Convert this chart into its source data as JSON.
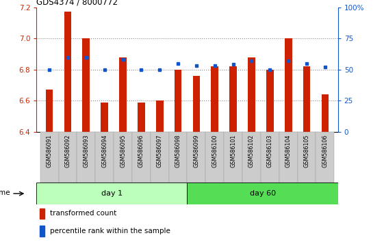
{
  "title": "GDS4374 / 8000772",
  "samples": [
    "GSM586091",
    "GSM586092",
    "GSM586093",
    "GSM586094",
    "GSM586095",
    "GSM586096",
    "GSM586097",
    "GSM586098",
    "GSM586099",
    "GSM586100",
    "GSM586101",
    "GSM586102",
    "GSM586103",
    "GSM586104",
    "GSM586105",
    "GSM586106"
  ],
  "bar_values": [
    6.67,
    7.17,
    7.0,
    6.59,
    6.88,
    6.59,
    6.6,
    6.8,
    6.76,
    6.82,
    6.82,
    6.88,
    6.8,
    7.0,
    6.82,
    6.64
  ],
  "percentile_values": [
    50,
    60,
    60,
    50,
    58,
    50,
    50,
    55,
    53,
    53,
    54,
    57,
    50,
    57,
    55,
    52
  ],
  "bar_bottom": 6.4,
  "ylim_left": [
    6.4,
    7.2
  ],
  "ylim_right": [
    0,
    100
  ],
  "yticks_left": [
    6.4,
    6.6,
    6.8,
    7.0,
    7.2
  ],
  "yticks_right": [
    0,
    25,
    50,
    75,
    100
  ],
  "ytick_labels_right": [
    "0",
    "25",
    "50",
    "75",
    "100%"
  ],
  "bar_color": "#cc2200",
  "blue_color": "#1155cc",
  "grid_color": "#888888",
  "day1_color": "#bbffbb",
  "day60_color": "#55dd55",
  "day1_label": "day 1",
  "day60_label": "day 60",
  "time_label": "time",
  "legend_red": "transformed count",
  "legend_blue": "percentile rank within the sample",
  "bar_width": 0.4,
  "n_day1": 8,
  "n_day60": 8
}
